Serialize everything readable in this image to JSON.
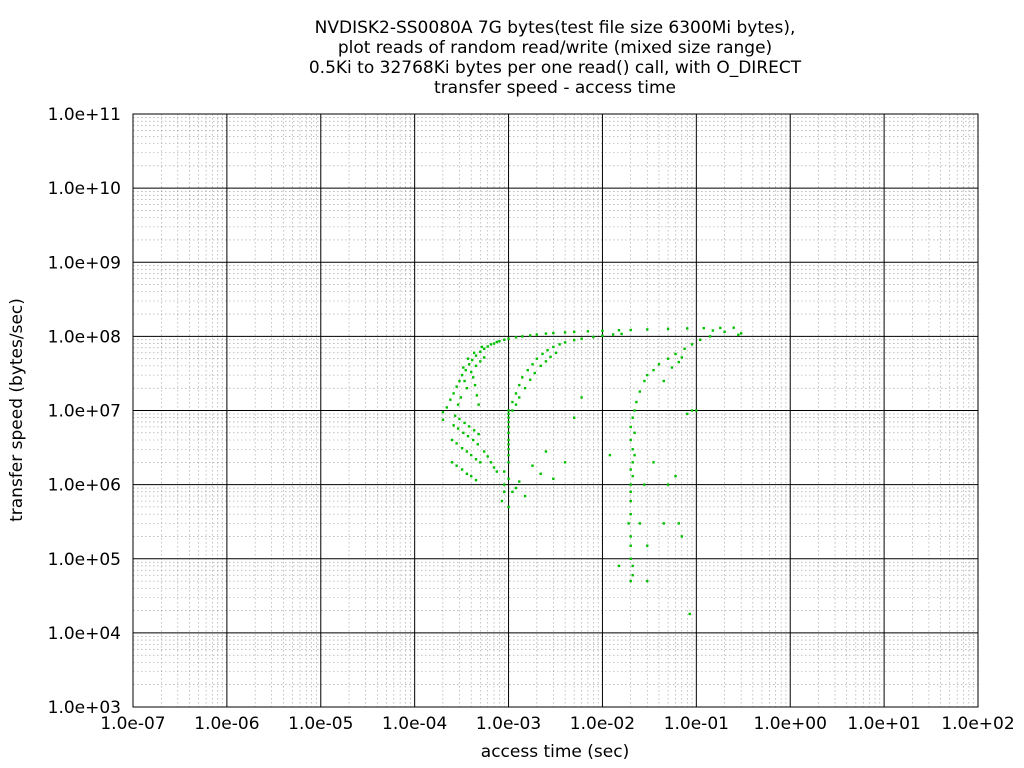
{
  "chart_data": {
    "type": "scatter",
    "title_lines": [
      "NVDISK2-SS0080A 7G bytes(test file size 6300Mi bytes),",
      "plot reads of random read/write (mixed size range)",
      "0.5Ki to 32768Ki bytes per one read() call, with O_DIRECT",
      "transfer speed - access time"
    ],
    "xlabel": "access time (sec)",
    "ylabel": "transfer speed (bytes/sec)",
    "x_scale": "log",
    "y_scale": "log",
    "xlim": [
      1e-07,
      100
    ],
    "ylim": [
      1000,
      100000000000.0
    ],
    "x_tick_labels": [
      "1.0e-07",
      "1.0e-06",
      "1.0e-05",
      "1.0e-04",
      "1.0e-03",
      "1.0e-02",
      "1.0e-01",
      "1.0e+00",
      "1.0e+01",
      "1.0e+02"
    ],
    "y_tick_labels": [
      "1.0e+03",
      "1.0e+04",
      "1.0e+05",
      "1.0e+06",
      "1.0e+07",
      "1.0e+08",
      "1.0e+09",
      "1.0e+10",
      "1.0e+11"
    ],
    "grid": true,
    "series_color": "#00c000",
    "series": [
      {
        "points": [
          [
            0.00025,
            4000000.0
          ],
          [
            0.00028,
            3600000.0
          ],
          [
            0.00032,
            3100000.0
          ],
          [
            0.00036,
            2800000.0
          ],
          [
            0.0004,
            2500000.0
          ],
          [
            0.00045,
            2200000.0
          ],
          [
            0.0005,
            2000000.0
          ],
          [
            0.00025,
            2000000.0
          ],
          [
            0.00028,
            1800000.0
          ],
          [
            0.00032,
            1600000.0
          ],
          [
            0.00036,
            1400000.0
          ],
          [
            0.0004,
            1300000.0
          ],
          [
            0.00045,
            1150000.0
          ],
          [
            0.00026,
            6300000.0
          ],
          [
            0.00029,
            5700000.0
          ],
          [
            0.00033,
            5000000.0
          ],
          [
            0.00037,
            4500000.0
          ],
          [
            0.00042,
            4000000.0
          ],
          [
            0.00047,
            3500000.0
          ],
          [
            0.00027,
            8500000.0
          ],
          [
            0.0003,
            7700000.0
          ],
          [
            0.00034,
            6800000.0
          ],
          [
            0.00038,
            6100000.0
          ],
          [
            0.00043,
            5400000.0
          ],
          [
            0.00048,
            4800000.0
          ],
          [
            0.0002,
            7500000.0
          ],
          [
            0.0002,
            9500000.0
          ],
          [
            0.00022,
            11000000.0
          ],
          [
            0.00024,
            14000000.0
          ],
          [
            0.00026,
            17000000.0
          ],
          [
            0.00028,
            21000000.0
          ],
          [
            0.0003,
            25000000.0
          ],
          [
            0.00032,
            30000000.0
          ],
          [
            0.00035,
            35000000.0
          ],
          [
            0.00038,
            42000000.0
          ],
          [
            0.00041,
            48000000.0
          ],
          [
            0.00045,
            55000000.0
          ],
          [
            0.0005,
            62000000.0
          ],
          [
            0.00055,
            68000000.0
          ],
          [
            0.0006,
            73000000.0
          ],
          [
            0.0007,
            80000000.0
          ],
          [
            0.0008,
            86000000.0
          ],
          [
            0.0009,
            90000000.0
          ],
          [
            0.001,
            93000000.0
          ],
          [
            0.0012,
            97000000.0
          ],
          [
            0.0014,
            100000000.0
          ],
          [
            0.0017,
            103000000.0
          ],
          [
            0.002,
            106000000.0
          ],
          [
            0.0025,
            109000000.0
          ],
          [
            0.003,
            111000000.0
          ],
          [
            0.004,
            113000000.0
          ],
          [
            0.005,
            115000000.0
          ],
          [
            0.007,
            117000000.0
          ],
          [
            0.01,
            119000000.0
          ],
          [
            0.015,
            121000000.0
          ],
          [
            0.02,
            122000000.0
          ],
          [
            0.03,
            124000000.0
          ],
          [
            0.05,
            126000000.0
          ],
          [
            0.08,
            128000000.0
          ],
          [
            0.12,
            129000000.0
          ],
          [
            0.18,
            130000000.0
          ],
          [
            0.25,
            131000000.0
          ],
          [
            0.00048,
            12000000.0
          ],
          [
            0.00046,
            16000000.0
          ],
          [
            0.00044,
            22000000.0
          ],
          [
            0.00042,
            28000000.0
          ],
          [
            0.0004,
            33000000.0
          ],
          [
            0.00045,
            40000000.0
          ],
          [
            0.0005,
            46000000.0
          ],
          [
            0.00055,
            52000000.0
          ],
          [
            0.00036,
            20000000.0
          ],
          [
            0.00034,
            25000000.0
          ],
          [
            0.00031,
            15000000.0
          ],
          [
            0.00029,
            12000000.0
          ],
          [
            0.00033,
            38000000.0
          ],
          [
            0.00037,
            50000000.0
          ],
          [
            0.00043,
            60000000.0
          ],
          [
            0.00052,
            72000000.0
          ],
          [
            0.00065,
            78000000.0
          ],
          [
            0.00075,
            84000000.0
          ],
          [
            0.0009,
            1000000.0
          ],
          [
            0.0009,
            800000.0
          ],
          [
            0.00085,
            600000.0
          ],
          [
            0.001,
            500000.0
          ],
          [
            0.0009,
            1500000.0
          ],
          [
            0.001,
            1200000.0
          ],
          [
            0.001,
            2000000.0
          ],
          [
            0.001,
            2500000.0
          ],
          [
            0.001,
            3000000.0
          ],
          [
            0.001,
            3500000.0
          ],
          [
            0.001,
            4000000.0
          ],
          [
            0.001,
            5000000.0
          ],
          [
            0.001,
            6000000.0
          ],
          [
            0.001,
            7000000.0
          ],
          [
            0.001,
            8000000.0
          ],
          [
            0.001,
            9000000.0
          ],
          [
            0.001,
            10000000.0
          ],
          [
            0.0011,
            13000000.0
          ],
          [
            0.0012,
            17000000.0
          ],
          [
            0.0013,
            22000000.0
          ],
          [
            0.0014,
            28000000.0
          ],
          [
            0.0016,
            35000000.0
          ],
          [
            0.0018,
            42000000.0
          ],
          [
            0.002,
            50000000.0
          ],
          [
            0.0023,
            58000000.0
          ],
          [
            0.0026,
            65000000.0
          ],
          [
            0.003,
            72000000.0
          ],
          [
            0.0035,
            78000000.0
          ],
          [
            0.004,
            83000000.0
          ],
          [
            0.005,
            89000000.0
          ],
          [
            0.006,
            93000000.0
          ],
          [
            0.008,
            98000000.0
          ],
          [
            0.01,
            102000000.0
          ],
          [
            0.013,
            106000000.0
          ],
          [
            0.016,
            108000000.0
          ],
          [
            0.0011,
            10000000.0
          ],
          [
            0.0012,
            12000000.0
          ],
          [
            0.0013,
            15000000.0
          ],
          [
            0.0015,
            20000000.0
          ],
          [
            0.0017,
            26000000.0
          ],
          [
            0.0019,
            32000000.0
          ],
          [
            0.0022,
            40000000.0
          ],
          [
            0.0025,
            46000000.0
          ],
          [
            0.0028,
            53000000.0
          ],
          [
            0.0032,
            60000000.0
          ],
          [
            0.00055,
            2800000.0
          ],
          [
            0.0006,
            2400000.0
          ],
          [
            0.00065,
            2000000.0
          ],
          [
            0.0007,
            1700000.0
          ],
          [
            0.00075,
            1500000.0
          ],
          [
            0.0011,
            800000.0
          ],
          [
            0.0012,
            900000.0
          ],
          [
            0.0013,
            1100000.0
          ],
          [
            0.0015,
            700000.0
          ],
          [
            0.0018,
            1800000.0
          ],
          [
            0.0022,
            1400000.0
          ],
          [
            0.0025,
            2800000.0
          ],
          [
            0.003,
            1200000.0
          ],
          [
            0.004,
            2000000.0
          ],
          [
            0.005,
            8000000.0
          ],
          [
            0.006,
            15000000.0
          ],
          [
            0.012,
            2500000.0
          ],
          [
            0.02,
            200000.0
          ],
          [
            0.02,
            150000.0
          ],
          [
            0.02,
            100000.0
          ],
          [
            0.021,
            80000.0
          ],
          [
            0.021,
            60000.0
          ],
          [
            0.02,
            50000.0
          ],
          [
            0.019,
            300000.0
          ],
          [
            0.02,
            400000.0
          ],
          [
            0.02,
            600000.0
          ],
          [
            0.02,
            800000.0
          ],
          [
            0.02,
            1000000.0
          ],
          [
            0.021,
            1300000.0
          ],
          [
            0.02,
            1600000.0
          ],
          [
            0.021,
            2000000.0
          ],
          [
            0.022,
            2500000.0
          ],
          [
            0.021,
            3000000.0
          ],
          [
            0.02,
            4000000.0
          ],
          [
            0.022,
            5000000.0
          ],
          [
            0.02,
            6000000.0
          ],
          [
            0.021,
            8000000.0
          ],
          [
            0.022,
            10000000.0
          ],
          [
            0.023,
            13000000.0
          ],
          [
            0.025,
            18000000.0
          ],
          [
            0.028,
            25000000.0
          ],
          [
            0.03,
            30000000.0
          ],
          [
            0.035,
            35000000.0
          ],
          [
            0.04,
            42000000.0
          ],
          [
            0.05,
            50000000.0
          ],
          [
            0.06,
            58000000.0
          ],
          [
            0.075,
            68000000.0
          ],
          [
            0.09,
            78000000.0
          ],
          [
            0.11,
            90000000.0
          ],
          [
            0.14,
            100000000.0
          ],
          [
            0.03,
            50000.0
          ],
          [
            0.015,
            80000.0
          ],
          [
            0.035,
            2000000.0
          ],
          [
            0.045,
            300000.0
          ],
          [
            0.05,
            1000000.0
          ],
          [
            0.06,
            1300000.0
          ],
          [
            0.065,
            300000.0
          ],
          [
            0.07,
            200000.0
          ],
          [
            0.08,
            9000000.0
          ],
          [
            0.085,
            18000.0
          ],
          [
            0.09,
            10000000.0
          ],
          [
            0.03,
            150000.0
          ],
          [
            0.025,
            300000.0
          ],
          [
            0.028,
            1000000.0
          ],
          [
            0.15,
            120000000.0
          ],
          [
            0.2,
            115000000.0
          ],
          [
            0.28,
            105000000.0
          ],
          [
            0.3,
            110000000.0
          ],
          [
            0.1,
            10000000.0
          ],
          [
            0.045,
            25000000.0
          ],
          [
            0.055,
            38000000.0
          ],
          [
            0.065,
            45000000.0
          ],
          [
            0.07,
            52000000.0
          ]
        ]
      }
    ]
  }
}
